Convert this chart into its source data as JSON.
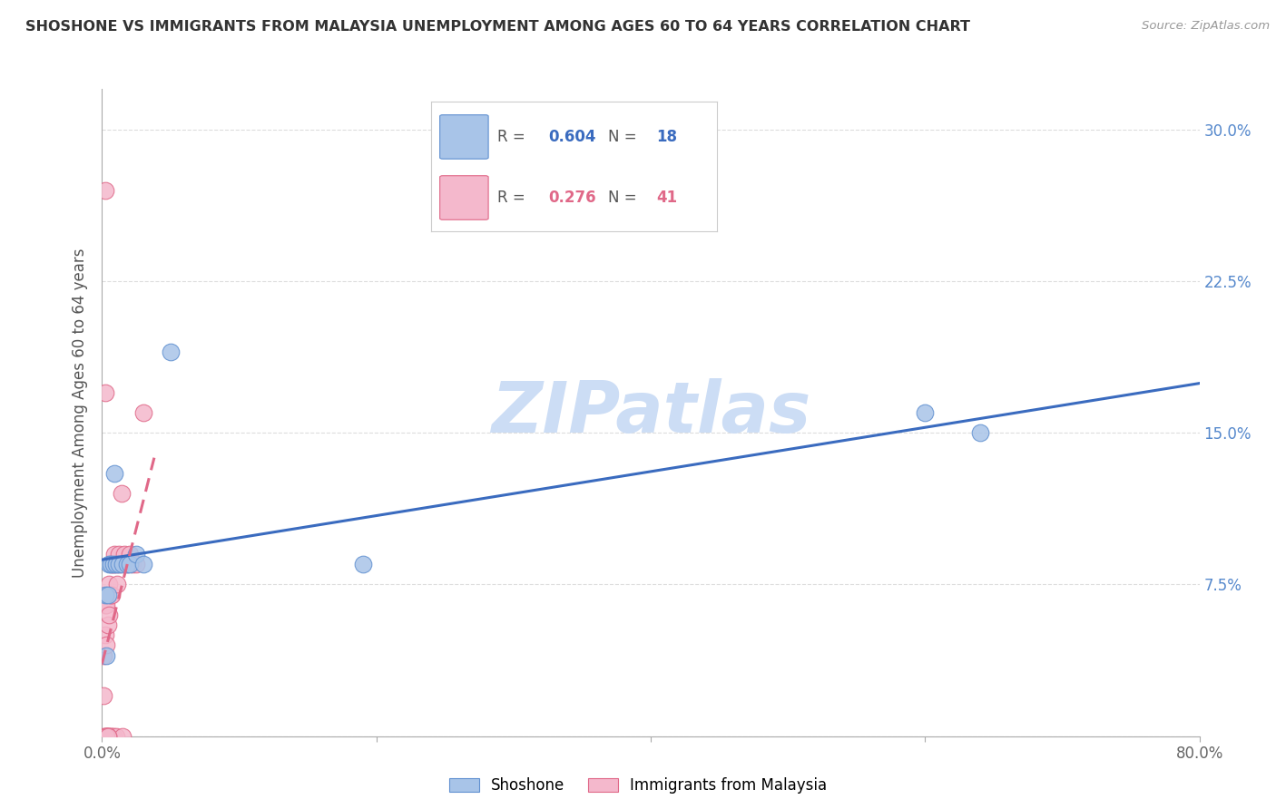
{
  "title": "SHOSHONE VS IMMIGRANTS FROM MALAYSIA UNEMPLOYMENT AMONG AGES 60 TO 64 YEARS CORRELATION CHART",
  "source": "Source: ZipAtlas.com",
  "ylabel": "Unemployment Among Ages 60 to 64 years",
  "xlim": [
    0.0,
    0.8
  ],
  "ylim": [
    0.0,
    0.32
  ],
  "yticks": [
    0.0,
    0.075,
    0.15,
    0.225,
    0.3
  ],
  "ytick_labels": [
    "",
    "7.5%",
    "15.0%",
    "22.5%",
    "30.0%"
  ],
  "xtick_positions": [
    0.0,
    0.2,
    0.4,
    0.6,
    0.8
  ],
  "xtick_labels": [
    "0.0%",
    "",
    "",
    "",
    "80.0%"
  ],
  "shoshone_fill": "#a8c4e8",
  "shoshone_edge": "#6090d0",
  "malaysia_fill": "#f4b8cc",
  "malaysia_edge": "#e06888",
  "shoshone_line_color": "#3a6bbf",
  "malaysia_line_color": "#e07090",
  "R_shoshone": "0.604",
  "N_shoshone": "18",
  "R_malaysia": "0.276",
  "N_malaysia": "41",
  "watermark": "ZIPatlas",
  "watermark_color": "#ccddf5",
  "shoshone_label": "Shoshone",
  "malaysia_label": "Immigrants from Malaysia",
  "shoshone_x": [
    0.002,
    0.003,
    0.004,
    0.005,
    0.006,
    0.008,
    0.009,
    0.01,
    0.012,
    0.015,
    0.018,
    0.02,
    0.025,
    0.03,
    0.05,
    0.19,
    0.6,
    0.64
  ],
  "shoshone_y": [
    0.07,
    0.04,
    0.07,
    0.085,
    0.085,
    0.085,
    0.13,
    0.085,
    0.085,
    0.085,
    0.085,
    0.085,
    0.09,
    0.085,
    0.19,
    0.085,
    0.16,
    0.15
  ],
  "malaysia_x": [
    0.001,
    0.001,
    0.001,
    0.002,
    0.002,
    0.002,
    0.003,
    0.003,
    0.003,
    0.004,
    0.004,
    0.005,
    0.005,
    0.005,
    0.006,
    0.006,
    0.007,
    0.007,
    0.007,
    0.008,
    0.008,
    0.009,
    0.01,
    0.01,
    0.011,
    0.012,
    0.013,
    0.014,
    0.015,
    0.016,
    0.018,
    0.02,
    0.022,
    0.025,
    0.03,
    0.002,
    0.002,
    0.003,
    0.004,
    0.003,
    0.004
  ],
  "malaysia_y": [
    0.0,
    0.02,
    0.04,
    0.0,
    0.05,
    0.065,
    0.0,
    0.045,
    0.065,
    0.0,
    0.055,
    0.0,
    0.06,
    0.075,
    0.0,
    0.07,
    0.0,
    0.07,
    0.085,
    0.0,
    0.085,
    0.09,
    0.0,
    0.085,
    0.075,
    0.09,
    0.085,
    0.12,
    0.0,
    0.09,
    0.085,
    0.09,
    0.085,
    0.085,
    0.16,
    0.17,
    0.27,
    0.0,
    0.0,
    0.0,
    0.0
  ]
}
